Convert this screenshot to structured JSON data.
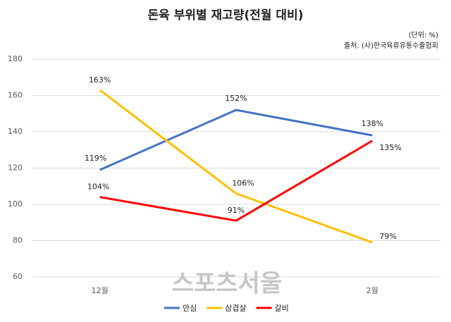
{
  "chart_data": {
    "type": "line",
    "title": "돈육 부위별 재고량(전월 대비)",
    "unit_note": "(단위: %)",
    "source": "출처: (사)한국육류유통수출협회",
    "watermark": "스포츠서울",
    "categories": [
      "12월",
      null,
      "2월"
    ],
    "series": [
      {
        "name": "안심",
        "color": "#4472c4",
        "values": [
          119,
          152,
          138
        ],
        "value_labels": [
          "119%",
          "152%",
          "138%"
        ]
      },
      {
        "name": "삼겹살",
        "color": "#ffc000",
        "values": [
          163,
          106,
          79
        ],
        "value_labels": [
          "163%",
          "106%",
          "79%"
        ]
      },
      {
        "name": "갈비",
        "color": "#ff0000",
        "values": [
          104,
          91,
          135
        ],
        "value_labels": [
          "104%",
          "91%",
          "135%"
        ]
      }
    ],
    "ylim": [
      60,
      180
    ],
    "yticks": [
      60,
      80,
      100,
      120,
      140,
      160,
      180
    ],
    "grid": true,
    "legend": "bottom"
  }
}
